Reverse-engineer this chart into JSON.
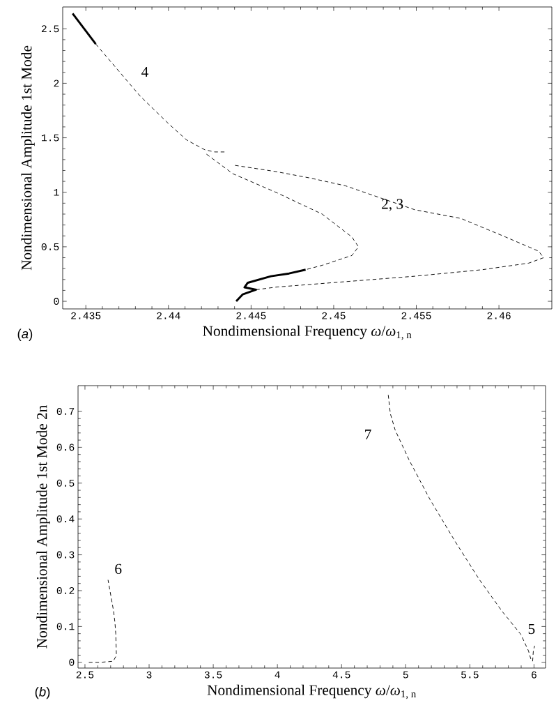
{
  "chart_data": [
    {
      "type": "line",
      "xlabel": "Nondimensional Frequency *ω*/*ω*$_{1, n}$",
      "ylabel": "Nondimensional Amplitude 1st Mode",
      "xlim": [
        2.4336,
        2.4632
      ],
      "ylim": [
        -0.07,
        2.7
      ],
      "xticks": [
        2.435,
        2.44,
        2.445,
        2.45,
        2.455,
        2.46
      ],
      "yticks": [
        0,
        0.5,
        1,
        1.5,
        2,
        2.5
      ],
      "series": [
        {
          "color": "#000000",
          "line_style": "solid",
          "x": [
            2.4342,
            2.4356
          ],
          "values": [
            2.64,
            2.36
          ]
        },
        {
          "color": "#000000",
          "line_style": "dashed",
          "x": [
            2.4356,
            2.4383,
            2.44,
            2.4411,
            2.4422,
            2.4428,
            2.4434
          ],
          "values": [
            2.36,
            1.88,
            1.63,
            1.48,
            1.39,
            1.37,
            1.37
          ]
        },
        {
          "color": "#000000",
          "line_style": "dashed",
          "x": [
            2.4423,
            2.4439,
            2.4465,
            2.4493,
            2.4511,
            2.4515,
            2.4511,
            2.4493,
            2.4483
          ],
          "values": [
            1.35,
            1.17,
            1.0,
            0.8,
            0.59,
            0.5,
            0.42,
            0.33,
            0.29
          ]
        },
        {
          "color": "#000000",
          "line_style": "solid",
          "x": [
            2.4441,
            2.4445,
            2.4453,
            2.4446,
            2.4448,
            2.4462,
            2.4473,
            2.4483
          ],
          "values": [
            0.0,
            0.064,
            0.106,
            0.128,
            0.17,
            0.23,
            0.255,
            0.29
          ]
        },
        {
          "color": "#000000",
          "line_style": "dashed",
          "x": [
            2.4453,
            2.4465,
            2.4507,
            2.4549,
            2.459,
            2.4618,
            2.4627,
            2.4624,
            2.4604,
            2.4577,
            2.4549,
            2.4507,
            2.4486,
            2.4465,
            2.4439
          ],
          "values": [
            0.106,
            0.13,
            0.18,
            0.23,
            0.29,
            0.35,
            0.4,
            0.46,
            0.59,
            0.76,
            0.84,
            1.06,
            1.13,
            1.19,
            1.25
          ]
        }
      ],
      "annotations": [
        "4",
        "2, 3",
        "(*a*)"
      ]
    },
    {
      "type": "line",
      "xlabel": "Nondimensional Frequency *ω*/*ω*$_{1, n}$",
      "ylabel": "Nondimensional Amplitude 1st Mode 2n",
      "xlim": [
        2.446,
        6.09
      ],
      "ylim": [
        -0.016,
        0.772
      ],
      "xticks": [
        2.5,
        3,
        3.5,
        4,
        4.5,
        5,
        5.5,
        6
      ],
      "yticks": [
        0,
        0.1,
        0.2,
        0.3,
        0.4,
        0.5,
        0.6,
        0.7
      ],
      "series": [
        {
          "color": "#000000",
          "line_style": "dashed",
          "x": [
            2.53,
            2.62,
            2.72,
            2.745,
            2.74,
            2.734,
            2.723,
            2.68
          ],
          "values": [
            0,
            0,
            0.003,
            0.019,
            0.08,
            0.11,
            0.143,
            0.23
          ]
        },
        {
          "color": "#000000",
          "line_style": "dashed",
          "x": [
            4.864,
            4.88,
            4.918,
            5.027,
            5.19,
            5.386,
            5.57,
            5.75,
            5.897,
            5.957,
            5.978
          ],
          "values": [
            0.746,
            0.694,
            0.648,
            0.564,
            0.454,
            0.337,
            0.233,
            0.143,
            0.078,
            0.032,
            0.006
          ]
        },
        {
          "color": "#000000",
          "line_style": "dashed",
          "x": [
            5.989,
            5.995,
            6.005
          ],
          "values": [
            0.003,
            0.032,
            0.046
          ]
        }
      ],
      "annotations": [
        "7",
        "6",
        "5",
        "(*b*)"
      ]
    }
  ]
}
